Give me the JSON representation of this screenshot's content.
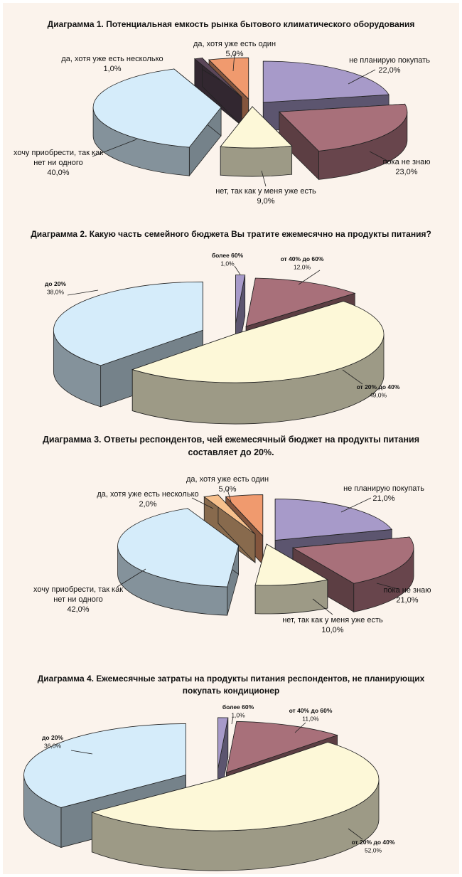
{
  "colors": {
    "background": "#fbf3ec",
    "purple": "#a79ac9",
    "rose": "#a8707a",
    "cream": "#fdf8d8",
    "lightblue": "#d5ecfa",
    "darkpurple": "#5a4658",
    "peach": "#f09a6e",
    "tan": "#b5967a",
    "orange": "#f7c08c"
  },
  "chart_data": [
    {
      "type": "pie",
      "title": "Диаграмма 1. Потенциальная емкость рынка бытового климатического оборудования",
      "slices": [
        {
          "label": "не планирую покупать",
          "value": 22.0,
          "value_label": "22,0%",
          "color": "#a79ac9"
        },
        {
          "label": "пока не знаю",
          "value": 23.0,
          "value_label": "23,0%",
          "color": "#a8707a"
        },
        {
          "label": "нет, так как у меня уже есть",
          "value": 9.0,
          "value_label": "9,0%",
          "color": "#fdf8d8"
        },
        {
          "label": "хочу приобрести, так как нет ни одного",
          "value": 40.0,
          "value_label": "40,0%",
          "color": "#d5ecfa"
        },
        {
          "label": "да, хотя уже есть несколько",
          "value": 1.0,
          "value_label": "1,0%",
          "color": "#5a4658"
        },
        {
          "label": "да, хотя уже есть один",
          "value": 5.0,
          "value_label": "5,0%",
          "color": "#f09a6e"
        }
      ]
    },
    {
      "type": "pie",
      "title": "Диаграмма 2. Какую часть семейного бюджета Вы тратите ежемесячно на продукты питания?",
      "slices": [
        {
          "label": "более 60%",
          "value": 1.0,
          "value_label": "1,0%",
          "color": "#a79ac9"
        },
        {
          "label": "от 40% до 60%",
          "value": 12.0,
          "value_label": "12,0%",
          "color": "#a8707a"
        },
        {
          "label": "от 20% до 40%",
          "value": 49.0,
          "value_label": "49,0%",
          "color": "#fdf8d8"
        },
        {
          "label": "до 20%",
          "value": 38.0,
          "value_label": "38,0%",
          "color": "#d5ecfa"
        }
      ]
    },
    {
      "type": "pie",
      "title": "Диаграмма 3. Ответы респондентов, чей ежемесячный бюджет на продукты питания составляет до 20%.",
      "slices": [
        {
          "label": "не планирую покупать",
          "value": 21.0,
          "value_label": "21,0%",
          "color": "#a79ac9"
        },
        {
          "label": "пока не знаю",
          "value": 21.0,
          "value_label": "21,0%",
          "color": "#a8707a"
        },
        {
          "label": "нет, так как у меня уже есть",
          "value": 10.0,
          "value_label": "10,0%",
          "color": "#fdf8d8"
        },
        {
          "label": "хочу приобрести, так как нет ни одного",
          "value": 42.0,
          "value_label": "42,0%",
          "color": "#d5ecfa"
        },
        {
          "label": "да, хотя уже есть несколько",
          "value": 2.0,
          "value_label": "2,0%",
          "color": "#f7c08c"
        },
        {
          "label": "да, хотя уже есть один",
          "value": 5.0,
          "value_label": "5,0%",
          "color": "#f09a6e"
        }
      ]
    },
    {
      "type": "pie",
      "title": "Диаграмма 4. Ежемесячные затраты на продукты питания респондентов, не планирующих покупать кондиционер",
      "slices": [
        {
          "label": "более 60%",
          "value": 1.0,
          "value_label": "1,0%",
          "color": "#a79ac9"
        },
        {
          "label": "от 40% до 60%",
          "value": 11.0,
          "value_label": "11,0%",
          "color": "#a8707a"
        },
        {
          "label": "от 20% до 40%",
          "value": 52.0,
          "value_label": "52,0%",
          "color": "#fdf8d8"
        },
        {
          "label": "до 20%",
          "value": 36.0,
          "value_label": "36,0%",
          "color": "#d5ecfa"
        }
      ]
    }
  ]
}
